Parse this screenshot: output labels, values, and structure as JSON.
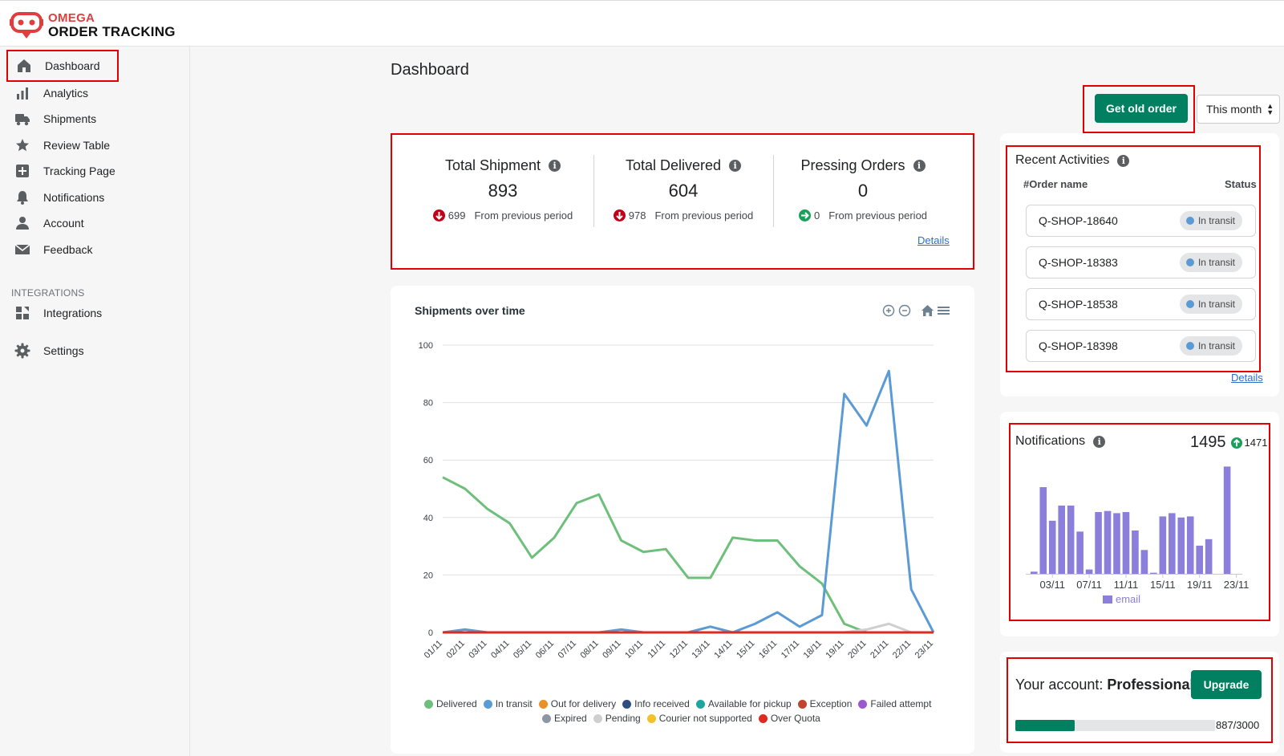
{
  "brand": {
    "top": "OMEGA",
    "bottom": "ORDER TRACKING"
  },
  "sidebar": {
    "items": [
      {
        "label": "Dashboard",
        "icon": "home-icon"
      },
      {
        "label": "Analytics",
        "icon": "bar-chart-icon"
      },
      {
        "label": "Shipments",
        "icon": "truck-icon"
      },
      {
        "label": "Review Table",
        "icon": "star-icon"
      },
      {
        "label": "Tracking Page",
        "icon": "plus-square-icon"
      },
      {
        "label": "Notifications",
        "icon": "bell-icon"
      },
      {
        "label": "Account",
        "icon": "user-icon"
      },
      {
        "label": "Feedback",
        "icon": "mail-icon"
      }
    ],
    "section_label": "INTEGRATIONS",
    "integrations_label": "Integrations",
    "settings_label": "Settings"
  },
  "page_title": "Dashboard",
  "toolbar": {
    "get_old_order": "Get old order",
    "period": "This month"
  },
  "stats": [
    {
      "title": "Total Shipment",
      "value": "893",
      "delta": "699",
      "delta_dir": "down",
      "sub": "From previous period"
    },
    {
      "title": "Total Delivered",
      "value": "604",
      "delta": "978",
      "delta_dir": "down",
      "sub": "From previous period"
    },
    {
      "title": "Pressing Orders",
      "value": "0",
      "delta": "0",
      "delta_dir": "neutral",
      "sub": "From previous period"
    }
  ],
  "stats_details": "Details",
  "recent": {
    "title": "Recent Activities",
    "col_order": "#Order name",
    "col_status": "Status",
    "orders": [
      {
        "name": "Q-SHOP-18640",
        "status": "In transit"
      },
      {
        "name": "Q-SHOP-18383",
        "status": "In transit"
      },
      {
        "name": "Q-SHOP-18538",
        "status": "In transit"
      },
      {
        "name": "Q-SHOP-18398",
        "status": "In transit"
      }
    ],
    "details": "Details"
  },
  "notifications": {
    "title": "Notifications",
    "total": "1495",
    "delta": "1471"
  },
  "account": {
    "prefix": "Your account: ",
    "plan": "Professional",
    "upgrade": "Upgrade",
    "usage": "887/3000",
    "usage_fraction": 0.2957
  },
  "colors": {
    "primary": "#008060",
    "highlight": "#e10000",
    "delivered": "#6dbf7b",
    "in_transit": "#5b9bd5",
    "email": "#8b7fdb"
  },
  "chart_data": [
    {
      "type": "line",
      "title": "Shipments over time",
      "xlabel": "",
      "ylabel": "",
      "ylim": [
        0,
        100
      ],
      "yticks": [
        0,
        20,
        40,
        60,
        80,
        100
      ],
      "grid": true,
      "legend_position": "bottom",
      "categories": [
        "01/11",
        "02/11",
        "03/11",
        "04/11",
        "05/11",
        "06/11",
        "07/11",
        "08/11",
        "09/11",
        "10/11",
        "11/11",
        "12/11",
        "13/11",
        "14/11",
        "15/11",
        "16/11",
        "17/11",
        "18/11",
        "19/11",
        "20/11",
        "21/11",
        "22/11",
        "23/11"
      ],
      "series": [
        {
          "name": "Delivered",
          "color": "#6dbf7b",
          "values": [
            54,
            50,
            43,
            38,
            26,
            33,
            45,
            48,
            32,
            28,
            29,
            19,
            19,
            33,
            32,
            32,
            23,
            17,
            3,
            0,
            0,
            0,
            0
          ]
        },
        {
          "name": "In transit",
          "color": "#5b9bd5",
          "values": [
            0,
            1,
            0,
            0,
            0,
            0,
            0,
            0,
            1,
            0,
            0,
            0,
            2,
            0,
            3,
            7,
            2,
            6,
            83,
            72,
            91,
            15,
            0
          ]
        },
        {
          "name": "Out for delivery",
          "color": "#e8912a",
          "values": [
            0,
            0,
            0,
            0,
            0,
            0,
            0,
            0,
            0,
            0,
            0,
            0,
            0,
            0,
            0,
            0,
            0,
            0,
            0,
            0,
            0,
            0,
            0
          ]
        },
        {
          "name": "Info received",
          "color": "#2f4d7e",
          "values": [
            0,
            0,
            0,
            0,
            0,
            0,
            0,
            0,
            0,
            0,
            0,
            0,
            0,
            0,
            0,
            0,
            0,
            0,
            0,
            0,
            0,
            0,
            0
          ]
        },
        {
          "name": "Available for pickup",
          "color": "#1fa5a0",
          "values": [
            0,
            0,
            0,
            0,
            0,
            0,
            0,
            0,
            0,
            0,
            0,
            0,
            0,
            0,
            0,
            0,
            0,
            0,
            0,
            0,
            0,
            0,
            0
          ]
        },
        {
          "name": "Exception",
          "color": "#c0452f",
          "values": [
            0,
            0,
            0,
            0,
            0,
            0,
            0,
            0,
            0,
            0,
            0,
            0,
            0,
            0,
            0,
            0,
            0,
            0,
            0,
            0,
            0,
            0,
            0
          ]
        },
        {
          "name": "Failed attempt",
          "color": "#9b59d0",
          "values": [
            0,
            0,
            0,
            0,
            0,
            0,
            0,
            0,
            0,
            0,
            0,
            0,
            0,
            0,
            0,
            0,
            0,
            0,
            0,
            0,
            0,
            0,
            0
          ]
        },
        {
          "name": "Expired",
          "color": "#8e96a3",
          "values": [
            0,
            0,
            0,
            0,
            0,
            0,
            0,
            0,
            0,
            0,
            0,
            0,
            0,
            0,
            0,
            0,
            0,
            0,
            0,
            0,
            0,
            0,
            0
          ]
        },
        {
          "name": "Pending",
          "color": "#cfcfcf",
          "values": [
            0,
            0,
            0,
            0,
            0,
            0,
            0,
            0,
            0,
            0,
            0,
            0,
            0,
            0,
            0,
            0,
            0,
            0,
            0,
            1,
            3,
            0,
            0
          ]
        },
        {
          "name": "Courier not supported",
          "color": "#f5c02c",
          "values": [
            0,
            0,
            0,
            0,
            0,
            0,
            0,
            0,
            0,
            0,
            0,
            0,
            0,
            0,
            0,
            0,
            0,
            0,
            0,
            0,
            0,
            0,
            0
          ]
        },
        {
          "name": "Over Quota",
          "color": "#dd2c1f",
          "values": [
            0,
            0,
            0,
            0,
            0,
            0,
            0,
            0,
            0,
            0,
            0,
            0,
            0,
            0,
            0,
            0,
            0,
            0,
            0,
            0,
            0,
            0,
            0
          ]
        }
      ]
    },
    {
      "type": "bar",
      "title": "",
      "ylim": [
        0,
        100
      ],
      "categories": [
        "01/11",
        "02/11",
        "03/11",
        "04/11",
        "05/11",
        "06/11",
        "07/11",
        "08/11",
        "09/11",
        "10/11",
        "11/11",
        "12/11",
        "13/11",
        "14/11",
        "15/11",
        "16/11",
        "17/11",
        "18/11",
        "19/11",
        "20/11",
        "21/11",
        "22/11",
        "23/11"
      ],
      "xtick_labels": [
        "03/11",
        "07/11",
        "11/11",
        "15/11",
        "19/11",
        "23/11"
      ],
      "series": [
        {
          "name": "email",
          "color": "#8b7fdb",
          "values": [
            2,
            80,
            49,
            63,
            63,
            39,
            4,
            57,
            58,
            56,
            57,
            40,
            22,
            1,
            53,
            56,
            52,
            53,
            26,
            32,
            0,
            99,
            0
          ]
        }
      ],
      "legend_position": "bottom"
    }
  ]
}
